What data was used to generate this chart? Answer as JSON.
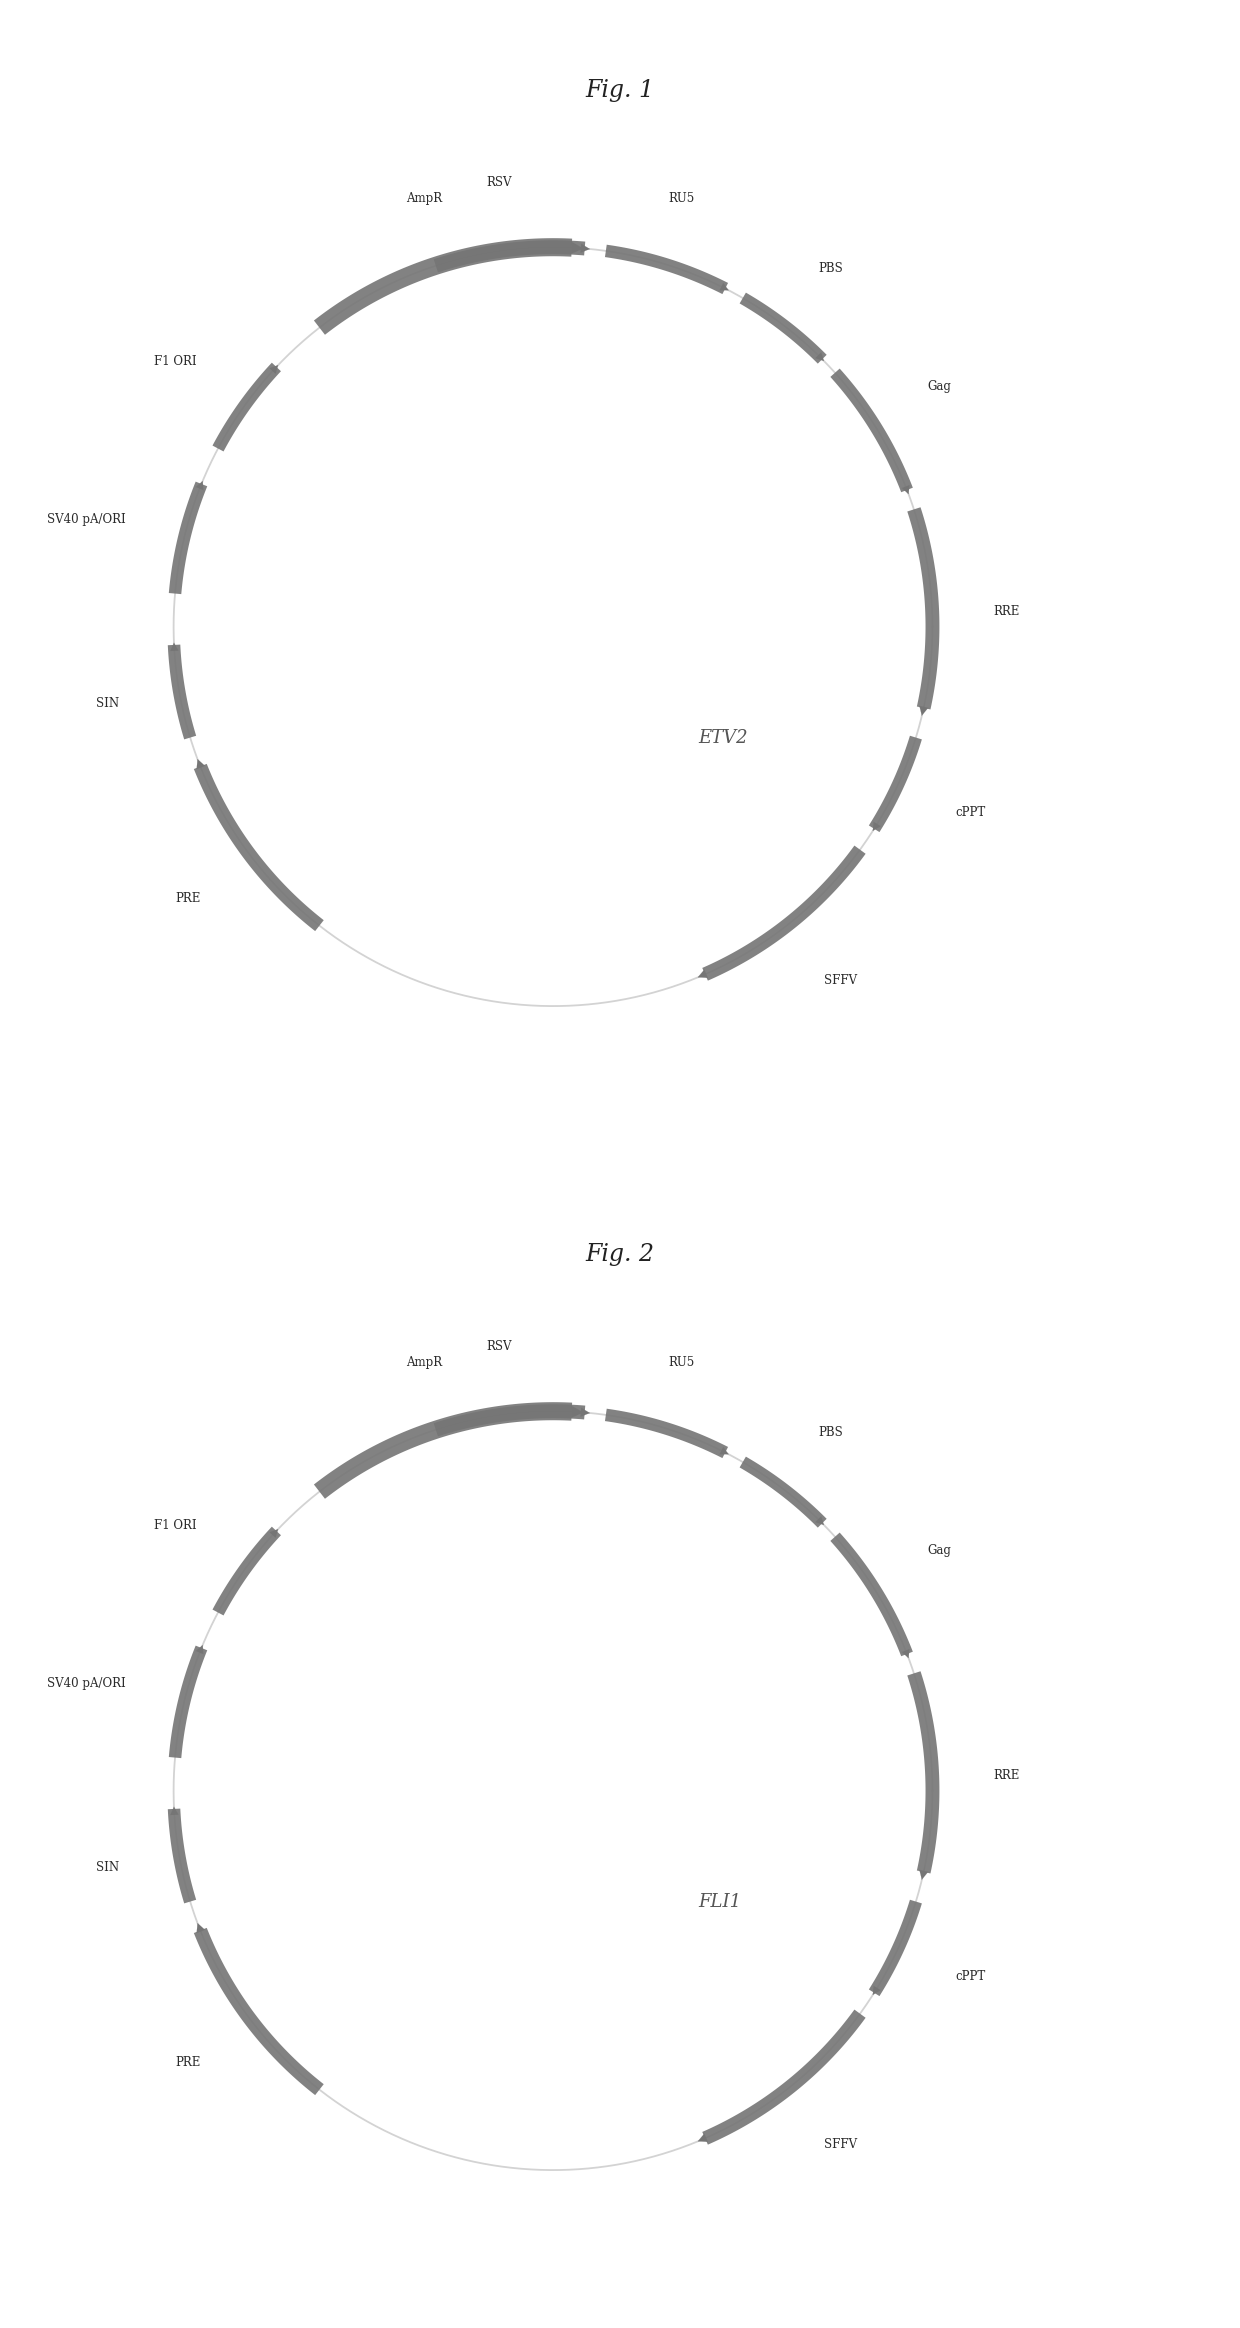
{
  "fig1_title": "Fig. 1",
  "fig2_title": "Fig. 2",
  "fig1_label": "ETV2",
  "fig2_label": "FLI1",
  "arrow_color": "#757575",
  "backbone_color": "#c8c8c8",
  "text_color": "#2a2a2a",
  "background_color": "#ffffff",
  "segments": [
    {
      "name": "RSV",
      "a1": 108,
      "a2": 84,
      "loff": 0.055,
      "size": "medium"
    },
    {
      "name": "RU5",
      "a1": 82,
      "a2": 62,
      "loff": 0.055,
      "size": "small"
    },
    {
      "name": "PBS",
      "a1": 60,
      "a2": 44,
      "loff": 0.055,
      "size": "small"
    },
    {
      "name": "Gag",
      "a1": 42,
      "a2": 20,
      "loff": 0.055,
      "size": "small"
    },
    {
      "name": "RRE",
      "a1": 18,
      "a2": -14,
      "loff": 0.055,
      "size": "medium"
    },
    {
      "name": "cPPT",
      "a1": -17,
      "a2": -33,
      "loff": 0.055,
      "size": "small"
    },
    {
      "name": "SFFV",
      "a1": -36,
      "a2": -68,
      "loff": 0.055,
      "size": "medium"
    },
    {
      "name": "PRE",
      "a1": -128,
      "a2": -160,
      "loff": 0.055,
      "size": "medium"
    },
    {
      "name": "SIN",
      "a1": -163,
      "a2": -178,
      "loff": 0.055,
      "size": "small"
    },
    {
      "name": "SV40 pA/ORI",
      "a1": -185,
      "a2": -203,
      "loff": 0.055,
      "size": "small"
    },
    {
      "name": "F1 ORI",
      "a1": -208,
      "a2": -224,
      "loff": 0.055,
      "size": "small"
    },
    {
      "name": "AmpR",
      "a1": -232,
      "a2": -275,
      "loff": 0.055,
      "size": "large"
    }
  ],
  "label_angles": {
    "RSV": 97,
    "RU5": 73,
    "PBS": 53,
    "Gag": 32,
    "RRE": 2,
    "cPPT": -24,
    "SFFV": -52,
    "PRE": -143,
    "SIN": -170,
    "SV40 pA/ORI": -194,
    "F1 ORI": -216,
    "AmpR": -253
  }
}
